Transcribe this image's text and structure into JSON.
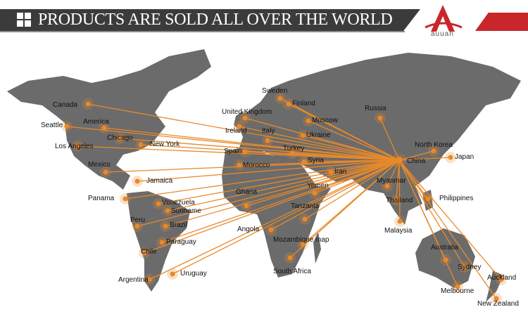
{
  "header": {
    "title": "PRODUCTS ARE SOLD ALL OVER THE WORLD",
    "icon": "windows-grid-icon",
    "logo_text": "auuan",
    "brand_color": "#c8262b"
  },
  "map": {
    "land_color": "#6b6b6b",
    "line_color": "#e8892a",
    "hub": "China",
    "locations": [
      {
        "name": "Canada",
        "lon": -105,
        "lat": 56
      },
      {
        "name": "Seattle",
        "lon": -122,
        "lat": 47
      },
      {
        "name": "America",
        "lon": -98,
        "lat": 40
      },
      {
        "name": "Chicago",
        "lon": -88,
        "lat": 42
      },
      {
        "name": "New York",
        "lon": -74,
        "lat": 41
      },
      {
        "name": "Los Angeles",
        "lon": -118,
        "lat": 34
      },
      {
        "name": "Mexico",
        "lon": -100,
        "lat": 22
      },
      {
        "name": "Jamaica",
        "lon": -77,
        "lat": 18
      },
      {
        "name": "Panama",
        "lon": -80,
        "lat": 9
      },
      {
        "name": "Venezuela",
        "lon": -66,
        "lat": 7
      },
      {
        "name": "Suriname",
        "lon": -56,
        "lat": 4
      },
      {
        "name": "Peru",
        "lon": -76,
        "lat": -10
      },
      {
        "name": "Brazil",
        "lon": -50,
        "lat": -10
      },
      {
        "name": "Paraguay",
        "lon": -58,
        "lat": -23
      },
      {
        "name": "Chile",
        "lon": -71,
        "lat": -30
      },
      {
        "name": "Argentina",
        "lon": -64,
        "lat": -36
      },
      {
        "name": "Uruguay",
        "lon": -56,
        "lat": -33
      },
      {
        "name": "Sweden",
        "lon": 15,
        "lat": 60
      },
      {
        "name": "Finland",
        "lon": 26,
        "lat": 62
      },
      {
        "name": "United Kingdom",
        "lon": -2,
        "lat": 53
      },
      {
        "name": "Ireland",
        "lon": -8,
        "lat": 53
      },
      {
        "name": "Italy",
        "lon": 12,
        "lat": 42
      },
      {
        "name": "Moscow",
        "lon": 37,
        "lat": 55
      },
      {
        "name": "Ukraine",
        "lon": 31,
        "lat": 49
      },
      {
        "name": "Spain",
        "lon": -4,
        "lat": 40
      },
      {
        "name": "Turkey",
        "lon": 35,
        "lat": 39
      },
      {
        "name": "Morocco",
        "lon": -6,
        "lat": 32
      },
      {
        "name": "Syria",
        "lon": 38,
        "lat": 35
      },
      {
        "name": "Iran",
        "lon": 53,
        "lat": 32
      },
      {
        "name": "Yemen",
        "lon": 48,
        "lat": 15
      },
      {
        "name": "Ghana",
        "lon": -1,
        "lat": 8
      },
      {
        "name": "Tanzania",
        "lon": 35,
        "lat": -6
      },
      {
        "name": "Angola",
        "lon": 18,
        "lat": -12
      },
      {
        "name": "Mozambique map",
        "lon": 35,
        "lat": -18
      },
      {
        "name": "South Africa",
        "lon": 25,
        "lat": -29
      },
      {
        "name": "Russia",
        "lon": 90,
        "lat": 61
      },
      {
        "name": "North Korea",
        "lon": 127,
        "lat": 40
      },
      {
        "name": "Japan",
        "lon": 138,
        "lat": 36
      },
      {
        "name": "China",
        "lon": 104,
        "lat": 35
      },
      {
        "name": "Myanmar",
        "lon": 96,
        "lat": 21
      },
      {
        "name": "Thailand",
        "lon": 101,
        "lat": 15
      },
      {
        "name": "Philippines",
        "lon": 122,
        "lat": 12
      },
      {
        "name": "Malaysia",
        "lon": 102,
        "lat": 4
      },
      {
        "name": "Australia",
        "lon": 134,
        "lat": -25
      },
      {
        "name": "Sydney",
        "lon": 151,
        "lat": -34
      },
      {
        "name": "Melbourne",
        "lon": 145,
        "lat": -38
      },
      {
        "name": "Auckland",
        "lon": 175,
        "lat": -37
      },
      {
        "name": "New Zealand",
        "lon": 172,
        "lat": -43
      }
    ]
  }
}
